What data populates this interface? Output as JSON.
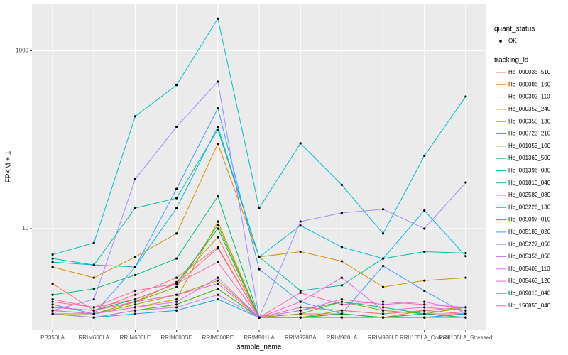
{
  "chart_data": {
    "type": "line",
    "x_label": "sample_name",
    "y_label": "FPKM + 1",
    "log_y": true,
    "grid": true,
    "categories": [
      "PB350LA",
      "RRIM600LA",
      "RRIM600LE",
      "RRIM600SE",
      "RRIM600PE",
      "RRIM901LA",
      "RRIM928BA",
      "RRIM928LA",
      "RRIM928LE",
      "RRII105LA_Control",
      "RRII105LA_Stressed"
    ],
    "ylim": [
      0.72,
      3400
    ],
    "yticks": [
      10,
      1000
    ],
    "point_legend_title": "quant_status",
    "point_legend_entry": "OK",
    "point_color": "#000000",
    "legend_title": "tracking_id",
    "series": [
      {
        "name": "Hb_000035_510",
        "color": "#F8766D",
        "values": [
          2.4,
          1.2,
          1.8,
          2.8,
          6.2,
          1,
          1.1,
          1.1,
          1,
          1.1,
          1.1
        ]
      },
      {
        "name": "Hb_000086_160",
        "color": "#EA8331",
        "values": [
          1.3,
          1.2,
          1.5,
          2.5,
          8,
          1,
          1,
          1.1,
          1,
          1.2,
          1.1
        ]
      },
      {
        "name": "Hb_000302_110",
        "color": "#D89000",
        "values": [
          3.7,
          2.8,
          4.8,
          8.8,
          90,
          4.8,
          5.5,
          4.3,
          2.2,
          2.6,
          2.8
        ]
      },
      {
        "name": "Hb_000352_240",
        "color": "#C09B00",
        "values": [
          1.2,
          1.1,
          1.3,
          1.6,
          12,
          1,
          1,
          1,
          1,
          1,
          1
        ]
      },
      {
        "name": "Hb_000358_130",
        "color": "#A3A500",
        "values": [
          1.1,
          1.1,
          1.4,
          1.8,
          2.6,
          1,
          1,
          1.2,
          1.1,
          1.2,
          1.3
        ]
      },
      {
        "name": "Hb_000723_210",
        "color": "#7CAE00",
        "values": [
          1.2,
          1.1,
          1.5,
          2.2,
          11,
          1,
          1.1,
          1.5,
          1.2,
          1.1,
          1.3
        ]
      },
      {
        "name": "Hb_001053_100",
        "color": "#39B600",
        "values": [
          1.1,
          1,
          1.2,
          1.4,
          2.1,
          1,
          1,
          1.1,
          1,
          1,
          1.1
        ]
      },
      {
        "name": "Hb_001369_500",
        "color": "#00BB4E",
        "values": [
          1.3,
          1.2,
          1.6,
          2.4,
          10,
          1,
          1,
          1.1,
          1,
          1.1,
          1
        ]
      },
      {
        "name": "Hb_001396_080",
        "color": "#00BF7D",
        "values": [
          1.8,
          2.1,
          3.0,
          4.6,
          23,
          1,
          1.2,
          1.5,
          1.3,
          1.1,
          1
        ]
      },
      {
        "name": "Hb_001810_040",
        "color": "#00C1A3",
        "values": [
          4.6,
          3.9,
          17,
          22,
          130,
          4.8,
          2,
          2.3,
          4.6,
          5.5,
          5.3
        ]
      },
      {
        "name": "Hb_002582_080",
        "color": "#00BFC4",
        "values": [
          5.1,
          6.9,
          183,
          412,
          2300,
          17,
          91,
          31,
          8.8,
          66,
          306
        ]
      },
      {
        "name": "Hb_003226_130",
        "color": "#00BAE0",
        "values": [
          4.2,
          3.9,
          3.7,
          17,
          140,
          4.8,
          10.8,
          6.2,
          4.6,
          16,
          4.9
        ]
      },
      {
        "name": "Hb_005097_010",
        "color": "#00B0F6",
        "values": [
          1.1,
          1,
          1.1,
          1.2,
          1.6,
          1,
          1,
          1,
          1,
          1,
          1.1
        ]
      },
      {
        "name": "Hb_005183_020",
        "color": "#35A2FF",
        "values": [
          1.4,
          1.1,
          3.7,
          28,
          225,
          3.5,
          1.5,
          1.1,
          3.8,
          2,
          1.1
        ]
      },
      {
        "name": "Hb_005227_050",
        "color": "#9590FF",
        "values": [
          1.2,
          1.6,
          36,
          140,
          450,
          1,
          12,
          15,
          16.5,
          10,
          33
        ]
      },
      {
        "name": "Hb_005356_050",
        "color": "#C77CFF",
        "values": [
          1.1,
          1,
          1.2,
          1.3,
          1.8,
          1,
          1,
          1,
          1,
          1,
          1
        ]
      },
      {
        "name": "Hb_005408_110",
        "color": "#E76BF3",
        "values": [
          1.2,
          1.1,
          1.3,
          1.5,
          2.8,
          1,
          1.2,
          1.6,
          1.4,
          1.5,
          1.2
        ]
      },
      {
        "name": "Hb_005463_120",
        "color": "#FA62DB",
        "values": [
          1.3,
          1.2,
          1.5,
          1.8,
          2.4,
          1,
          1.5,
          2.8,
          1.2,
          1.3,
          1.2
        ]
      },
      {
        "name": "Hb_009010_040",
        "color": "#FF62BC",
        "values": [
          1.6,
          1.3,
          2.0,
          2.4,
          4.2,
          1,
          1.9,
          1.4,
          1.5,
          1.4,
          1.3
        ]
      },
      {
        "name": "Hb_156850_040",
        "color": "#FF6C91",
        "values": [
          1.5,
          1.3,
          1.6,
          2.4,
          6,
          1,
          1.3,
          1.2,
          1.1,
          1.2,
          1.1
        ]
      }
    ]
  }
}
